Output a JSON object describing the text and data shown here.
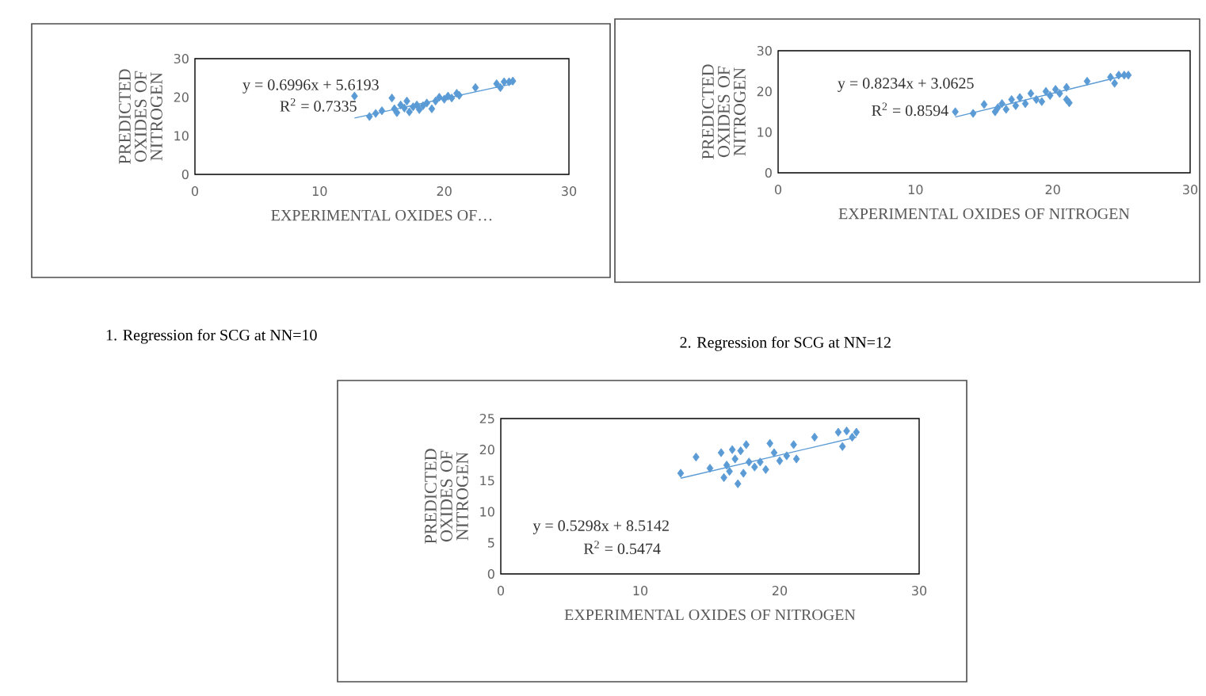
{
  "chart_data": [
    {
      "type": "scatter",
      "xlabel": "EXPERIMENTAL OXIDES OF…",
      "ylabel": "PREDICTED OXIDES OF NITROGEN",
      "xlim": [
        0,
        30
      ],
      "ylim": [
        0,
        30
      ],
      "xticks": [
        0,
        10,
        20,
        30
      ],
      "yticks": [
        0,
        10,
        20,
        30
      ],
      "marker": "diamond",
      "series": [
        {
          "color": "#5b9bd5",
          "x": [
            12.8,
            14,
            14.5,
            15,
            15.8,
            16,
            16.2,
            16.5,
            16.8,
            17,
            17.2,
            17.5,
            17.8,
            18,
            18.3,
            18.6,
            19,
            19.3,
            19.6,
            20,
            20.3,
            20.6,
            21,
            21.2,
            22.5,
            24.2,
            24.5,
            24.8,
            25.2,
            25.5
          ],
          "values": [
            20.3,
            15,
            15.8,
            16.5,
            19.8,
            17,
            16,
            18,
            17.2,
            19,
            16.2,
            17.5,
            18,
            16.8,
            17.8,
            18.5,
            17,
            19,
            20,
            19.5,
            20.3,
            19.8,
            21,
            20.5,
            22.5,
            23.5,
            22.5,
            24,
            24,
            24.2
          ]
        },
        {
          "type": "line",
          "marker": "none",
          "color": "#5b9bd5",
          "x": [
            12.8,
            25.5
          ],
          "values": [
            14.6,
            23.5
          ]
        }
      ],
      "annotations": [
        "y = 0.6996x + 5.6193",
        "R$^{2}$ = 0.7335",
        "1. Regression for SCG at NN=10"
      ]
    },
    {
      "type": "scatter",
      "xlabel": "EXPERIMENTAL OXIDES OF NITROGEN",
      "ylabel": "PREDICTED OXIDES OF NITROGEN",
      "xlim": [
        0,
        30
      ],
      "ylim": [
        0,
        30
      ],
      "xticks": [
        0,
        10,
        20,
        30
      ],
      "yticks": [
        0,
        10,
        20,
        30
      ],
      "marker": "diamond",
      "series": [
        {
          "color": "#5b9bd5",
          "x": [
            12.9,
            14.2,
            15,
            15.8,
            16,
            16.3,
            16.6,
            17,
            17.3,
            17.6,
            18,
            18.4,
            18.8,
            19.2,
            19.5,
            19.8,
            20.2,
            20.5,
            21,
            21,
            21.2,
            22.5,
            24.2,
            24.5,
            24.8,
            25.2,
            25.5
          ],
          "values": [
            15,
            14.6,
            16.8,
            15,
            16,
            17,
            15.6,
            18,
            16.5,
            18.5,
            17,
            19.5,
            18,
            17.5,
            20,
            19,
            20.5,
            19.5,
            21,
            18,
            17.2,
            22.5,
            23.5,
            22,
            24,
            24,
            24
          ]
        },
        {
          "type": "line",
          "marker": "none",
          "color": "#5b9bd5",
          "x": [
            12.9,
            25.5
          ],
          "values": [
            13.7,
            24.1
          ]
        }
      ],
      "annotations": [
        "y = 0.8234x + 3.0625",
        "R$^{2}$ = 0.8594",
        "2. Regression for SCG at NN=12"
      ]
    },
    {
      "type": "scatter",
      "xlabel": "EXPERIMENTAL OXIDES OF NITROGEN",
      "ylabel": "PREDICTED OXIDES OF NITROGEN",
      "xlim": [
        0,
        30
      ],
      "ylim": [
        0,
        25
      ],
      "xticks": [
        0,
        10,
        20,
        30
      ],
      "yticks": [
        0,
        5,
        10,
        15,
        20,
        25
      ],
      "marker": "diamond",
      "series": [
        {
          "color": "#5b9bd5",
          "x": [
            12.9,
            14,
            15,
            15.8,
            16,
            16.2,
            16.4,
            16.6,
            16.8,
            17,
            17.2,
            17.4,
            17.6,
            17.8,
            18.2,
            18.6,
            19,
            19.3,
            19.6,
            20,
            20.5,
            21,
            21.2,
            22.5,
            24.2,
            24.5,
            24.8,
            25.2,
            25.5
          ],
          "values": [
            16.2,
            18.8,
            17,
            19.5,
            15.5,
            17.5,
            16.5,
            20,
            18.5,
            14.5,
            19.8,
            16.2,
            20.8,
            18,
            17.2,
            18,
            16.8,
            21,
            19.5,
            18.2,
            19,
            20.8,
            18.5,
            22,
            22.8,
            20.5,
            23,
            22,
            22.8
          ]
        },
        {
          "type": "line",
          "marker": "none",
          "color": "#5b9bd5",
          "x": [
            12.9,
            25.5
          ],
          "values": [
            15.4,
            22.0
          ]
        }
      ],
      "annotations": [
        "y = 0.5298x + 8.5142",
        "R$^{2}$ = 0.5474"
      ]
    }
  ]
}
